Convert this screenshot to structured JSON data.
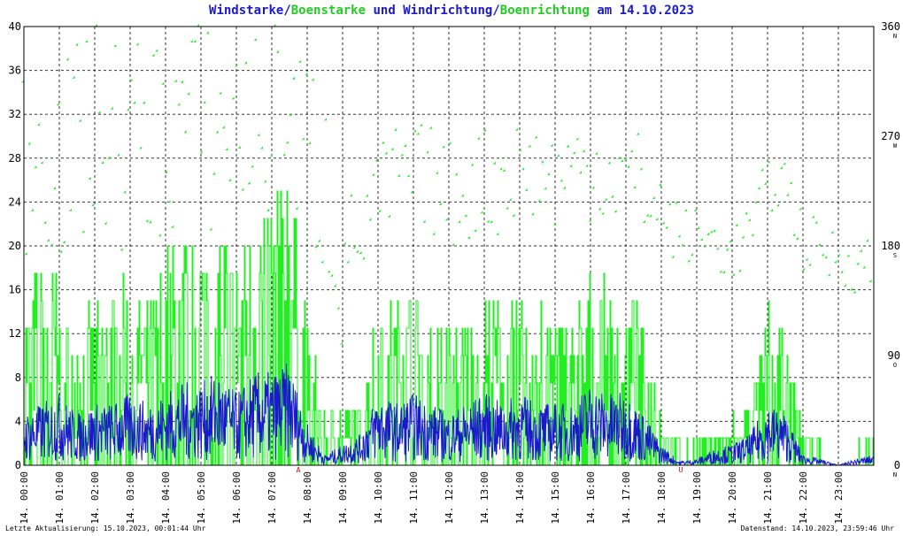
{
  "title": {
    "part1": "Windstarke",
    "sep1": "/",
    "part2": "Boenstarke",
    "mid": " und ",
    "part3": "Windrichtung",
    "sep2": "/",
    "part4": "Boenrichtung",
    "tail": " am 14.10.2023"
  },
  "footer": {
    "left": "Letzte Aktualisierung: 15.10.2023, 00:01:44 Uhr",
    "right": "Datenstand: 14.10.2023, 23:59:46 Uhr"
  },
  "colors": {
    "wind": "#1a1acc",
    "gust": "#22ee22",
    "grid": "#000000",
    "marker": "#dd0000"
  },
  "chart_data": {
    "type": "line",
    "xlim": [
      0,
      24
    ],
    "ylim_left": [
      0,
      40
    ],
    "ylim_right": [
      0,
      360
    ],
    "yticks_left": [
      "0",
      "4",
      "8",
      "12",
      "16",
      "20",
      "24",
      "28",
      "32",
      "36",
      "40"
    ],
    "yticks_right": [
      "0",
      "90",
      "180",
      "270",
      "360"
    ],
    "compass_labels": [
      "N",
      "O",
      "S",
      "W",
      "N"
    ],
    "xticks": [
      "14. 00:00",
      "14. 01:00",
      "14. 02:00",
      "14. 03:00",
      "14. 04:00",
      "14. 05:00",
      "14. 06:00",
      "14. 07:00",
      "14. 08:00",
      "14. 09:00",
      "14. 10:00",
      "14. 11:00",
      "14. 12:00",
      "14. 13:00",
      "14. 14:00",
      "14. 15:00",
      "14. 16:00",
      "14. 17:00",
      "14. 18:00",
      "14. 19:00",
      "14. 20:00",
      "14. 21:00",
      "14. 22:00",
      "14. 23:00"
    ],
    "sun_markers": [
      {
        "label": "A",
        "hour": 7.75
      },
      {
        "label": "U",
        "hour": 18.55
      }
    ],
    "grid": true,
    "series": [
      {
        "name": "Windstarke",
        "hours": [
          0,
          0.5,
          1,
          1.5,
          2,
          2.5,
          3,
          3.5,
          4,
          4.5,
          5,
          5.5,
          6,
          6.5,
          7,
          7.5,
          8,
          8.5,
          9,
          9.5,
          10,
          10.5,
          11,
          11.5,
          12,
          12.5,
          13,
          13.5,
          14,
          14.5,
          15,
          15.5,
          16,
          16.5,
          17,
          17.5,
          18,
          18.5,
          19,
          19.5,
          20,
          20.5,
          21,
          21.5,
          22,
          22.5,
          23,
          23.5,
          24
        ],
        "values": [
          2.5,
          3,
          3.5,
          2.5,
          3,
          3,
          3.5,
          3,
          3.5,
          4,
          4,
          4.5,
          3.5,
          4.5,
          4.5,
          5,
          2,
          0.5,
          1,
          1.5,
          3.5,
          3,
          3.5,
          3,
          2.5,
          3,
          3.5,
          3,
          3.5,
          3,
          3,
          3,
          4,
          3.5,
          3.5,
          2.5,
          1,
          0.2,
          0.3,
          0.8,
          1,
          1.5,
          3,
          2.5,
          0.5,
          0.3,
          0,
          0.3,
          0.5
        ]
      },
      {
        "name": "Boenstarke",
        "hours": [
          0,
          0.5,
          1,
          1.5,
          2,
          2.5,
          3,
          3.5,
          4,
          4.5,
          5,
          5.5,
          6,
          6.5,
          7,
          7.5,
          8,
          8.5,
          9,
          9.5,
          10,
          10.5,
          11,
          11.5,
          12,
          12.5,
          13,
          13.5,
          14,
          14.5,
          15,
          15.5,
          16,
          16.5,
          17,
          17.5,
          18,
          18.5,
          19,
          19.5,
          20,
          20.5,
          21,
          21.5,
          22,
          22.5,
          23,
          23.5,
          24
        ],
        "values": [
          9,
          12,
          10,
          8,
          9,
          10,
          10,
          9,
          12,
          13,
          14,
          15,
          12,
          15,
          16,
          18,
          8,
          3,
          3,
          4,
          10,
          9,
          10,
          9,
          8,
          9,
          10,
          9,
          10,
          9,
          9,
          9,
          11,
          10,
          10,
          8,
          3,
          1,
          1,
          2,
          2.5,
          4,
          9,
          7,
          2,
          1,
          0,
          1,
          1.5
        ]
      },
      {
        "name": "Windrichtung",
        "hours": [
          0,
          0.5,
          1,
          1.5,
          2,
          2.5,
          3,
          3.5,
          4,
          4.5,
          5,
          5.5,
          6,
          6.5,
          7,
          7.5,
          8,
          8.5,
          9,
          9.5,
          10,
          10.5,
          11,
          11.5,
          12,
          12.5,
          13,
          13.5,
          14,
          14.5,
          15,
          15.5,
          16,
          16.5,
          17,
          17.5,
          18,
          18.5,
          19,
          19.5,
          20,
          20.5,
          21,
          21.5,
          22,
          22.5,
          23,
          23.5,
          24
        ],
        "values": [
          260,
          270,
          250,
          260,
          280,
          270,
          265,
          275,
          270,
          280,
          285,
          270,
          290,
          280,
          270,
          285,
          250,
          230,
          170,
          190,
          210,
          230,
          240,
          230,
          225,
          220,
          230,
          235,
          240,
          235,
          230,
          235,
          240,
          235,
          230,
          225,
          200,
          195,
          190,
          180,
          175,
          185,
          230,
          240,
          190,
          180,
          165,
          160,
          170
        ]
      },
      {
        "name": "Boenrichtung",
        "hours": [
          0,
          0.5,
          1,
          1.5,
          2,
          2.5,
          3,
          3.5,
          4,
          4.5,
          5,
          5.5,
          6,
          6.5,
          7,
          7.5,
          8,
          8.5,
          9,
          9.5,
          10,
          10.5,
          11,
          11.5,
          12,
          12.5,
          13,
          13.5,
          14,
          14.5,
          15,
          15.5,
          16,
          16.5,
          17,
          17.5,
          18,
          18.5,
          19,
          19.5,
          20,
          20.5,
          21,
          21.5,
          22,
          22.5,
          23,
          23.5,
          24
        ],
        "values": [
          255,
          275,
          245,
          255,
          285,
          265,
          260,
          270,
          265,
          285,
          290,
          265,
          285,
          275,
          275,
          280,
          255,
          235,
          175,
          185,
          215,
          235,
          235,
          235,
          220,
          225,
          235,
          230,
          245,
          240,
          235,
          240,
          245,
          240,
          235,
          230,
          205,
          190,
          185,
          185,
          170,
          190,
          225,
          235,
          185,
          175,
          170,
          165,
          165
        ]
      }
    ]
  }
}
